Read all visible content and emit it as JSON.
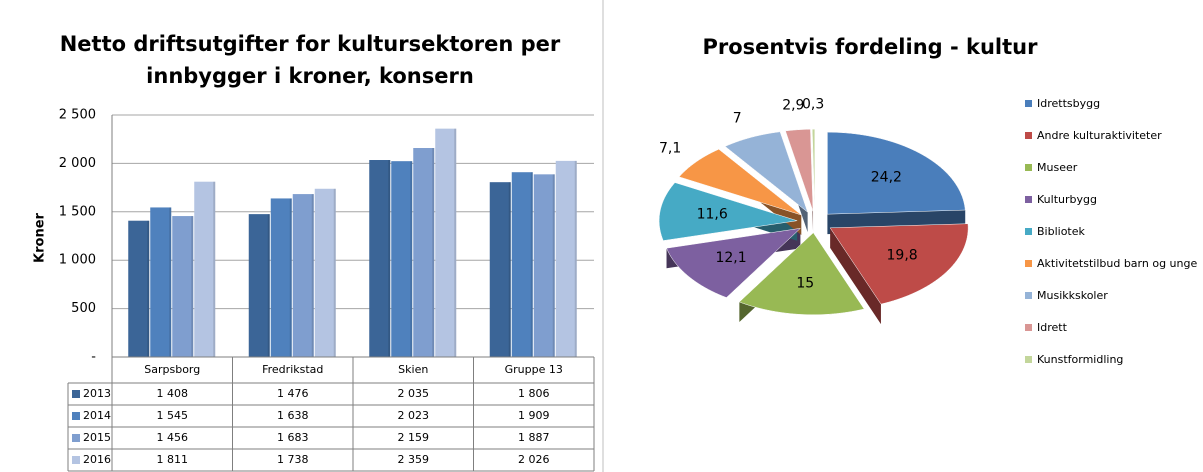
{
  "chart_data": [
    {
      "type": "bar",
      "title": [
        "Netto driftsutgifter for kultursektoren per",
        "innbygger i kroner, konsern"
      ],
      "y_label": "Kroner",
      "categories": [
        "Sarpsborg",
        "Fredrikstad",
        "Skien",
        "Gruppe 13"
      ],
      "series": [
        {
          "name": "2013",
          "color": "#3b6597",
          "values": [
            1408,
            1476,
            2035,
            1806
          ],
          "value_labels": [
            "1 408",
            "1 476",
            "2 035",
            "1 806"
          ]
        },
        {
          "name": "2014",
          "color": "#4f81bd",
          "values": [
            1545,
            1638,
            2023,
            1909
          ],
          "value_labels": [
            "1 545",
            "1 638",
            "2 023",
            "1 909"
          ]
        },
        {
          "name": "2015",
          "color": "#7f9ecf",
          "values": [
            1456,
            1683,
            2159,
            1887
          ],
          "value_labels": [
            "1 456",
            "1 683",
            "2 159",
            "1 887"
          ]
        },
        {
          "name": "2016",
          "color": "#b4c4e2",
          "values": [
            1811,
            1738,
            2359,
            2026
          ],
          "value_labels": [
            "1 811",
            "1 738",
            "2 359",
            "2 026"
          ]
        }
      ],
      "ylim": [
        0,
        2500
      ],
      "yticks": [
        {
          "value": 0,
          "label": "-"
        },
        500,
        {
          "value": 1000,
          "label": "1 000"
        },
        {
          "value": 1500,
          "label": "1 500"
        },
        {
          "value": 2000,
          "label": "2 000"
        },
        {
          "value": 2500,
          "label": "2 500"
        }
      ],
      "grid": true
    },
    {
      "type": "pie",
      "title": "Prosentvis fordeling - kultur",
      "categories": [
        "Idrettsbygg",
        "Andre kulturaktiviteter",
        "Museer",
        "Kulturbygg",
        "Bibliotek",
        "Aktivitetstilbud barn og unge",
        "Musikkskoler",
        "Idrett",
        "Kunstformidling"
      ],
      "values": [
        24.2,
        19.8,
        15,
        12.1,
        11.6,
        7.1,
        7,
        2.9,
        0.3
      ],
      "value_labels": [
        "24,2",
        "19,8",
        "15",
        "12,1",
        "11,6",
        "7,1",
        "7",
        "2,9",
        "0,3"
      ],
      "colors": [
        "#4a7ebb",
        "#be4b48",
        "#98b954",
        "#7d60a0",
        "#46aac5",
        "#f79646",
        "#95b3d7",
        "#d99694",
        "#c3d69b"
      ],
      "legend": "right"
    }
  ]
}
